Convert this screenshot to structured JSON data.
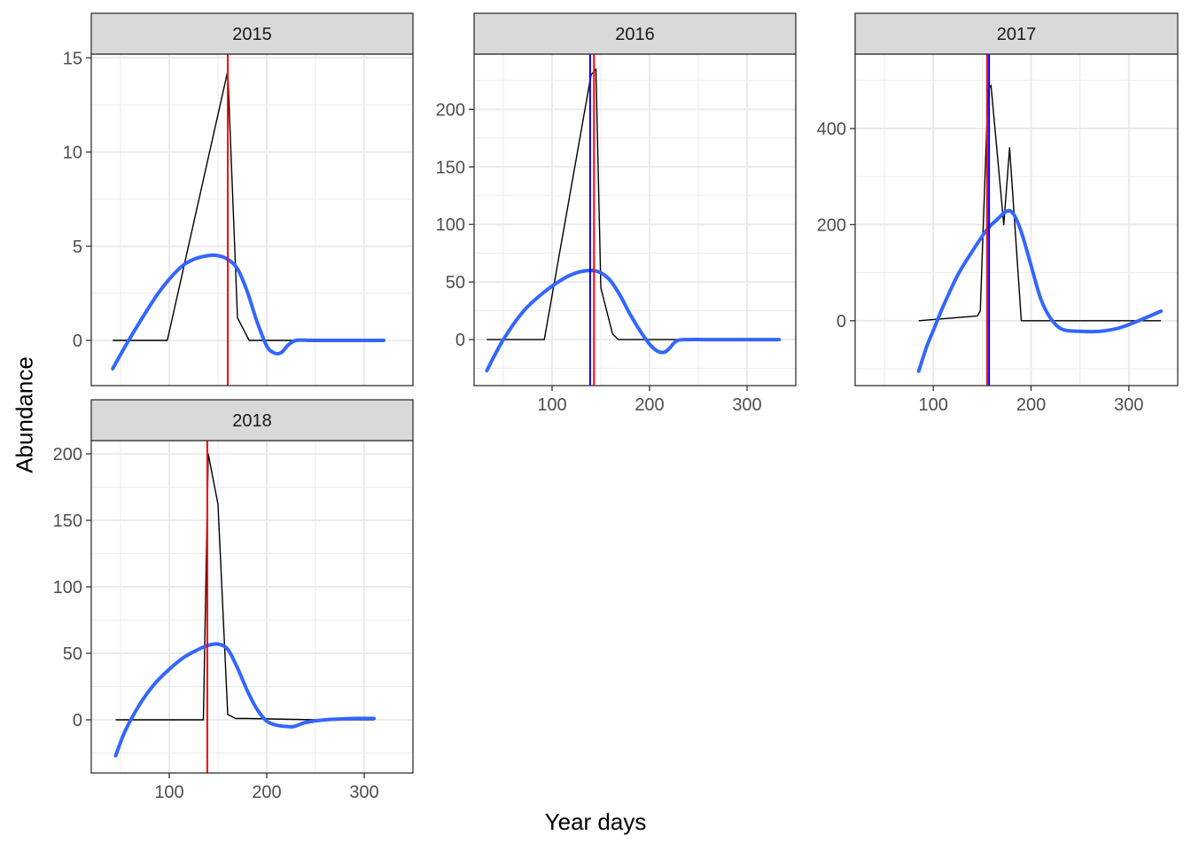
{
  "chart_data": {
    "type": "line",
    "xlabel": "Year days",
    "ylabel": "Abundance",
    "grid": true,
    "colors": {
      "observed": "#000000",
      "smooth": "#3366FF",
      "red_marker": "#FF0000",
      "blue_marker": "#0000FF",
      "strip": "#D9D9D9",
      "grid": "#EBEBEB"
    },
    "panels": [
      {
        "title": "2015",
        "xlim": [
          20,
          350
        ],
        "ylim": [
          -2.4,
          15.2
        ],
        "x_ticks": [
          100,
          200,
          300
        ],
        "y_ticks": [
          0,
          5,
          10,
          15
        ],
        "observed": {
          "x": [
            42,
            98,
            160,
            170,
            182,
            320
          ],
          "y": [
            0,
            0,
            14.3,
            1.2,
            0,
            0
          ]
        },
        "smooth": {
          "x": [
            42,
            55,
            70,
            90,
            110,
            125,
            140,
            150,
            160,
            170,
            180,
            190,
            200,
            207,
            212,
            216,
            222,
            230,
            245,
            260,
            280,
            300,
            320
          ],
          "y": [
            -1.5,
            -0.3,
            1.0,
            2.6,
            3.8,
            4.3,
            4.5,
            4.5,
            4.3,
            3.8,
            2.6,
            1.0,
            -0.3,
            -0.65,
            -0.7,
            -0.6,
            -0.25,
            0,
            0,
            0,
            0,
            0,
            0
          ]
        },
        "vlines": [
          {
            "x": 160,
            "color": "red"
          }
        ]
      },
      {
        "title": "2016",
        "xlim": [
          20,
          350
        ],
        "ylim": [
          -40,
          248
        ],
        "x_ticks": [
          100,
          200,
          300
        ],
        "y_ticks": [
          0,
          50,
          100,
          150,
          200
        ],
        "observed": {
          "x": [
            33,
            92,
            140,
            145,
            150,
            162,
            168,
            240,
            333
          ],
          "y": [
            0,
            0,
            230,
            235,
            45,
            5,
            0,
            0,
            0
          ]
        },
        "smooth": {
          "x": [
            33,
            50,
            70,
            90,
            110,
            125,
            140,
            150,
            160,
            170,
            180,
            190,
            200,
            208,
            215,
            220,
            228,
            240,
            260,
            300,
            333
          ],
          "y": [
            -27,
            0,
            24,
            40,
            52,
            58,
            60,
            58,
            51,
            38,
            22,
            8,
            -4,
            -10,
            -11,
            -8,
            -1,
            0,
            0,
            0,
            0
          ]
        },
        "vlines": [
          {
            "x": 139,
            "color": "blue"
          },
          {
            "x": 143,
            "color": "red"
          }
        ]
      },
      {
        "title": "2017",
        "xlim": [
          20,
          350
        ],
        "ylim": [
          -135,
          555
        ],
        "x_ticks": [
          100,
          200,
          300
        ],
        "y_ticks": [
          0,
          200,
          400
        ],
        "observed": {
          "x": [
            85,
            145,
            148,
            156,
            159,
            172,
            178,
            190,
            333
          ],
          "y": [
            0,
            10,
            20,
            480,
            490,
            200,
            360,
            0,
            0
          ]
        },
        "smooth": {
          "x": [
            85,
            93,
            100,
            110,
            125,
            140,
            155,
            165,
            175,
            182,
            190,
            200,
            210,
            220,
            232,
            250,
            270,
            290,
            310,
            333
          ],
          "y": [
            -105,
            -55,
            -20,
            30,
            95,
            145,
            190,
            210,
            228,
            222,
            185,
            115,
            45,
            5,
            -18,
            -22,
            -22,
            -15,
            0,
            20
          ]
        },
        "vlines": [
          {
            "x": 155,
            "color": "red"
          },
          {
            "x": 157,
            "color": "blue"
          }
        ]
      },
      {
        "title": "2018",
        "xlim": [
          20,
          350
        ],
        "ylim": [
          -40,
          210
        ],
        "x_ticks": [
          100,
          200,
          300
        ],
        "y_ticks": [
          0,
          50,
          100,
          150,
          200
        ],
        "observed": {
          "x": [
            45,
            135,
            140,
            150,
            160,
            168,
            180,
            250,
            310
          ],
          "y": [
            0,
            0,
            200,
            162,
            4,
            1,
            1,
            0,
            0
          ]
        },
        "smooth": {
          "x": [
            45,
            55,
            70,
            85,
            100,
            115,
            130,
            140,
            150,
            160,
            170,
            180,
            190,
            200,
            210,
            220,
            228,
            240,
            260,
            290,
            310
          ],
          "y": [
            -27,
            -8,
            12,
            27,
            38,
            47,
            53,
            56,
            57,
            53,
            39,
            22,
            8,
            -1,
            -4,
            -5,
            -5,
            -2,
            0,
            1,
            1
          ]
        },
        "vlines": [
          {
            "x": 139,
            "color": "red"
          }
        ]
      }
    ]
  }
}
